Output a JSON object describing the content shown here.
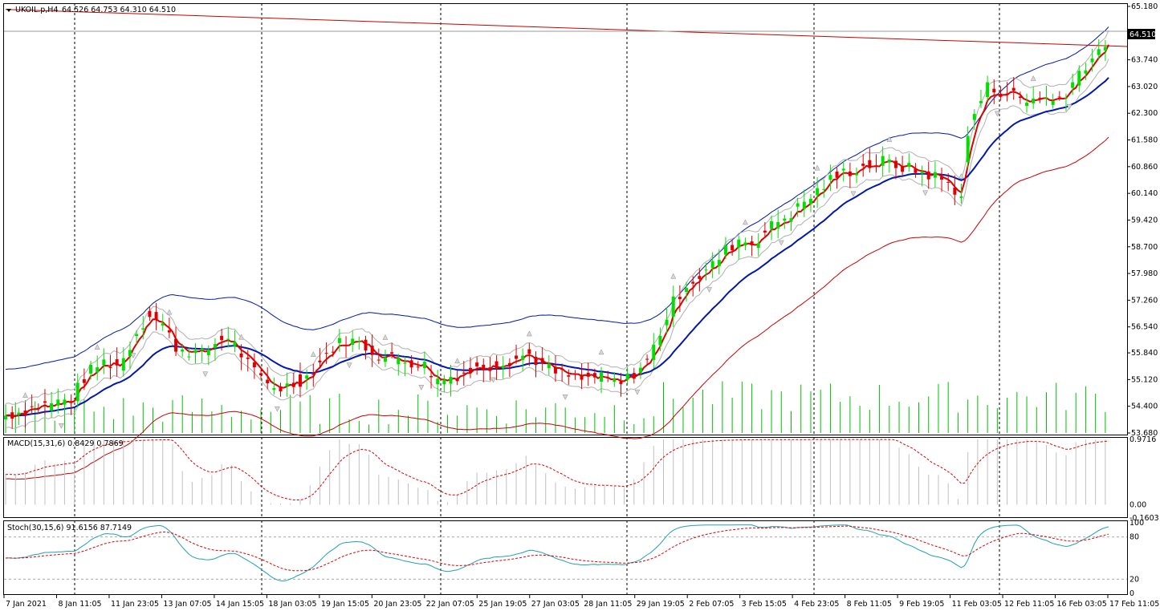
{
  "window": {
    "symbol_label": "UKOIL.p,H4",
    "ohlc_label": "64.526 64.753 64.310 64.510",
    "current_price": "64.510"
  },
  "colors": {
    "up_candle": "#00e000",
    "down_candle": "#e00000",
    "ema_fast": "#dd0000",
    "ema_slow": "#0018b0",
    "envelope": "#b0b0b0",
    "upper_band": "#0018b0",
    "lower_band": "#cc0000",
    "trendline": "#cc0000",
    "volume": "#00c000",
    "macd_hist": "#c0c0c0",
    "macd_signal": "#dd0000",
    "stoch_main": "#20a0b0",
    "stoch_signal": "#dd0000"
  },
  "chart_data": [
    {
      "type": "candlestick",
      "price_axis_ticks": [
        "65.180",
        "64.510",
        "63.740",
        "63.020",
        "62.300",
        "61.580",
        "60.860",
        "60.140",
        "59.420",
        "58.700",
        "57.980",
        "57.260",
        "56.540",
        "55.840",
        "55.120",
        "54.400",
        "53.680"
      ],
      "ylim": [
        53.68,
        65.18
      ],
      "x_labels": [
        "7 Jan 2021",
        "8 Jan 11:05",
        "11 Jan 23:05",
        "13 Jan 07:05",
        "14 Jan 15:05",
        "18 Jan 03:05",
        "19 Jan 15:05",
        "20 Jan 23:05",
        "22 Jan 07:05",
        "25 Jan 19:05",
        "27 Jan 03:05",
        "28 Jan 11:05",
        "29 Jan 19:05",
        "2 Feb 07:05",
        "3 Feb 15:05",
        "4 Feb 23:05",
        "8 Feb 11:05",
        "9 Feb 19:05",
        "11 Feb 03:05",
        "12 Feb 11:05",
        "16 Feb 03:05",
        "17 Feb 11:05"
      ],
      "close_path": [
        [
          0,
          54.15
        ],
        [
          10,
          54.4
        ],
        [
          20,
          54.6
        ],
        [
          25,
          55.3
        ],
        [
          30,
          55.6
        ],
        [
          35,
          55.5
        ],
        [
          40,
          56.4
        ],
        [
          44,
          56.9
        ],
        [
          48,
          56.6
        ],
        [
          52,
          56.0
        ],
        [
          56,
          55.9
        ],
        [
          60,
          55.8
        ],
        [
          64,
          56.1
        ],
        [
          68,
          56.3
        ],
        [
          72,
          55.8
        ],
        [
          76,
          55.3
        ],
        [
          80,
          55.0
        ],
        [
          84,
          54.9
        ],
        [
          88,
          55.0
        ],
        [
          92,
          55.2
        ],
        [
          96,
          55.6
        ],
        [
          100,
          56.0
        ],
        [
          104,
          56.2
        ],
        [
          108,
          56.1
        ],
        [
          112,
          55.9
        ],
        [
          116,
          55.7
        ],
        [
          120,
          55.7
        ],
        [
          124,
          55.6
        ],
        [
          128,
          55.5
        ],
        [
          132,
          55.1
        ],
        [
          136,
          55.2
        ],
        [
          140,
          55.3
        ],
        [
          144,
          55.4
        ],
        [
          148,
          55.5
        ],
        [
          152,
          55.6
        ],
        [
          156,
          55.7
        ],
        [
          160,
          55.8
        ],
        [
          164,
          55.5
        ],
        [
          168,
          55.3
        ],
        [
          172,
          55.2
        ],
        [
          176,
          55.1
        ],
        [
          180,
          55.2
        ],
        [
          184,
          55.1
        ],
        [
          188,
          55.0
        ],
        [
          192,
          55.3
        ],
        [
          196,
          55.6
        ],
        [
          200,
          56.4
        ],
        [
          204,
          57.2
        ],
        [
          208,
          57.7
        ],
        [
          212,
          57.9
        ],
        [
          216,
          58.2
        ],
        [
          220,
          58.6
        ],
        [
          224,
          58.9
        ],
        [
          228,
          58.8
        ],
        [
          232,
          59.1
        ],
        [
          236,
          59.4
        ],
        [
          240,
          59.6
        ],
        [
          244,
          59.9
        ],
        [
          248,
          60.2
        ],
        [
          252,
          60.5
        ],
        [
          256,
          60.7
        ],
        [
          260,
          60.8
        ],
        [
          264,
          60.9
        ],
        [
          268,
          61.0
        ],
        [
          272,
          60.9
        ],
        [
          276,
          60.8
        ],
        [
          280,
          60.7
        ],
        [
          284,
          60.6
        ],
        [
          288,
          60.4
        ],
        [
          292,
          60.1
        ],
        [
          294,
          61.6
        ],
        [
          296,
          62.3
        ],
        [
          300,
          63.0
        ],
        [
          304,
          62.9
        ],
        [
          308,
          62.8
        ],
        [
          312,
          62.6
        ],
        [
          316,
          62.8
        ],
        [
          320,
          62.6
        ],
        [
          324,
          62.9
        ],
        [
          328,
          63.4
        ],
        [
          332,
          63.8
        ],
        [
          335,
          63.9
        ],
        [
          337,
          64.51
        ]
      ],
      "emas": [
        {
          "name": "ema_fast",
          "offset": 0.0,
          "smooth": 0.35
        },
        {
          "name": "ema_slow",
          "offset": 0.0,
          "smooth": 0.07
        }
      ],
      "envelope_pct": 0.006,
      "band_dev": 1.25,
      "trendline": [
        [
          0,
          65.1
        ],
        [
          337,
          64.1
        ]
      ]
    },
    {
      "type": "histogram",
      "name_label": "MACD(15,31,6) 0.8429 0.7869",
      "axis_ticks": [
        "0.9716",
        "0.00",
        "-0.1603"
      ],
      "ylim": [
        -0.1603,
        0.9716
      ]
    },
    {
      "type": "line",
      "name_label": "Stoch(30,15,6) 91.6156 87.7149",
      "axis_ticks": [
        "100",
        "80",
        "20",
        "0"
      ],
      "ylim": [
        0,
        100
      ],
      "levels": [
        80,
        20
      ]
    }
  ]
}
